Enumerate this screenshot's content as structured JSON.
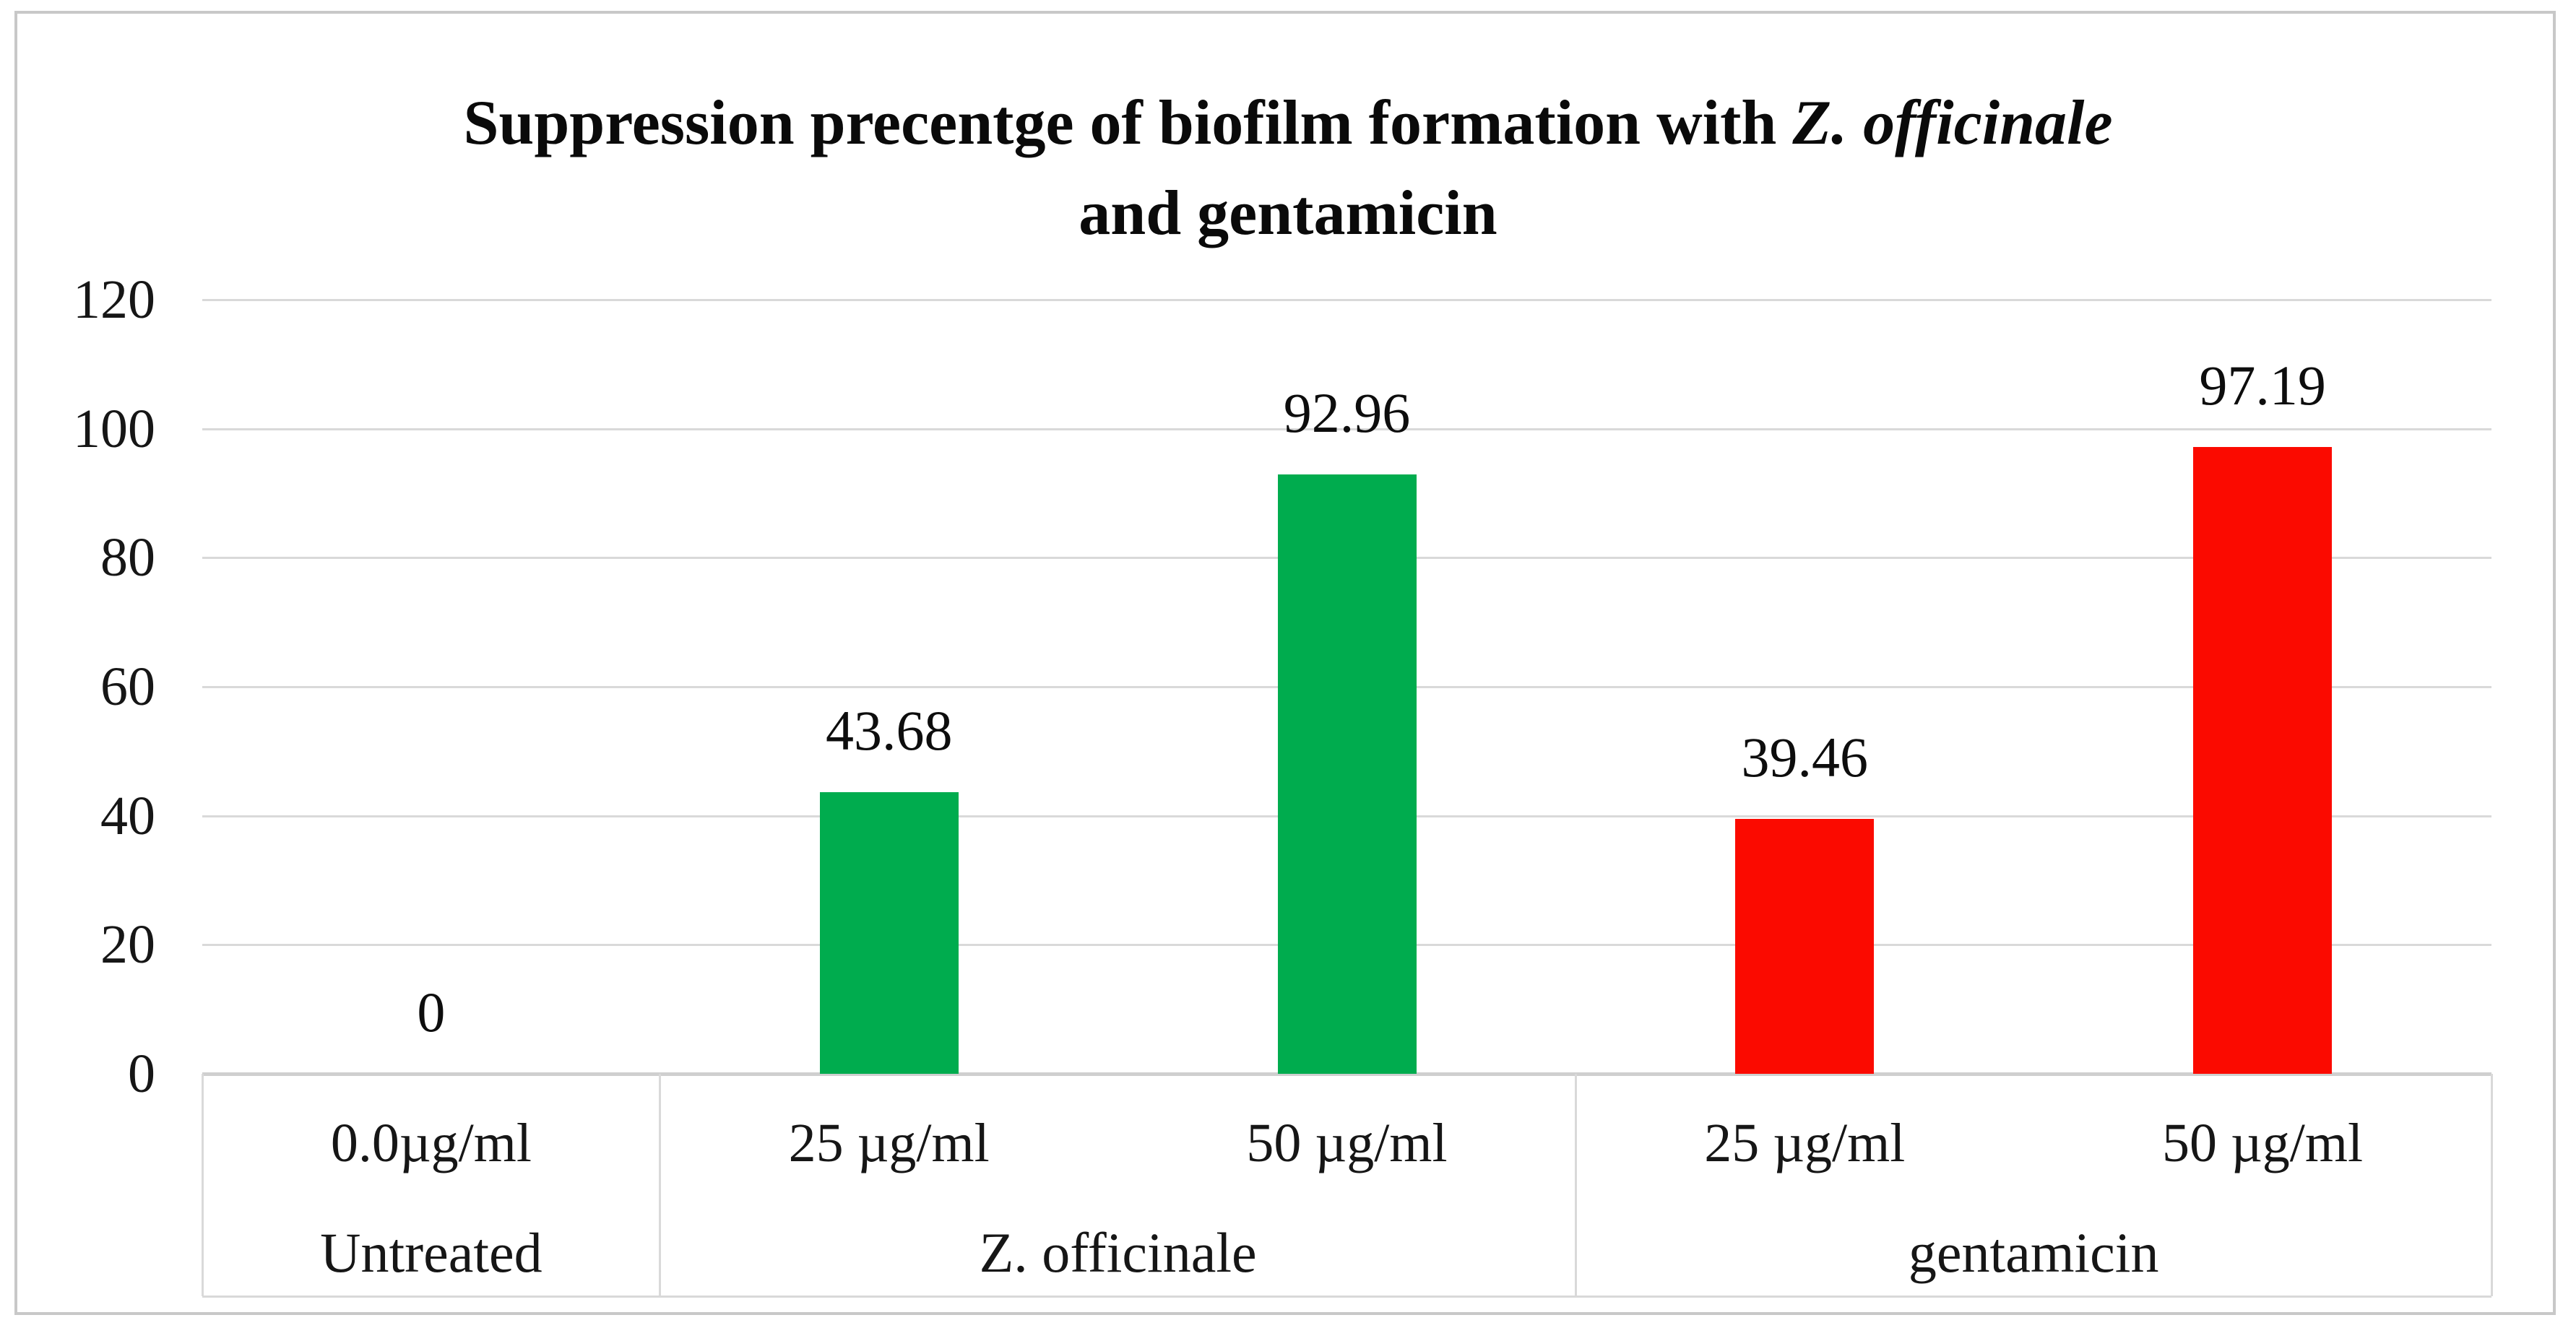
{
  "title": {
    "line1_prefix": "Suppression precentge of biofilm formation with ",
    "line1_italic": "Z. officinale",
    "line2": "and gentamicin"
  },
  "chart_data": {
    "type": "bar",
    "title": "Suppression precentge of biofilm formation with Z. officinale and gentamicin",
    "ylabel": "",
    "xlabel": "",
    "ylim": [
      0,
      120
    ],
    "yticks": [
      120,
      100,
      80,
      60,
      40,
      20,
      0
    ],
    "grid": true,
    "legend": "none",
    "groups": [
      {
        "label": "Untreated",
        "bar_color": null,
        "bars": [
          {
            "dose": "0.0µg/ml",
            "value": 0,
            "value_label": "0"
          }
        ]
      },
      {
        "label": "Z. officinale",
        "bar_color": "#00AC4E",
        "bars": [
          {
            "dose": "25 µg/ml",
            "value": 43.68,
            "value_label": "43.68"
          },
          {
            "dose": "50 µg/ml",
            "value": 92.96,
            "value_label": "92.96"
          }
        ]
      },
      {
        "label": "gentamicin",
        "bar_color": "#FB0A00",
        "bars": [
          {
            "dose": "25 µg/ml",
            "value": 39.46,
            "value_label": "39.46"
          },
          {
            "dose": "50 µg/ml",
            "value": 97.19,
            "value_label": "97.19"
          }
        ]
      }
    ]
  },
  "colors": {
    "green_bar": "#00AC4E",
    "red_bar": "#FB0A00",
    "gridline": "#D9D9D9",
    "axis_line": "#CFCFCF",
    "frame_border": "#C8C8C8",
    "text": "#111111",
    "background": "#FFFFFF"
  }
}
